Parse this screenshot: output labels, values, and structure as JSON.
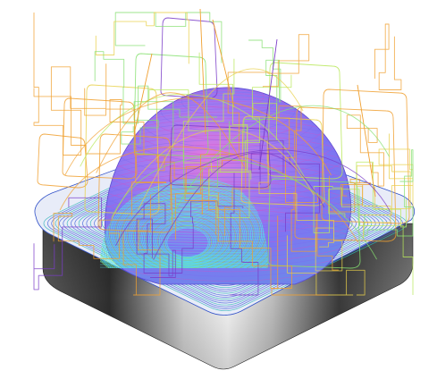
{
  "scene": {
    "background": "#ffffff",
    "subject": "toolpath-visualization",
    "colors": {
      "block_light": "#f2f2f2",
      "block_mid": "#9a9a9a",
      "block_dark": "#2a2a2a",
      "contour_blue": "#3f5fd8",
      "contour_teal": "#2fb3b8",
      "dome_violet": "#7b6cf0",
      "dome_magenta": "#d052c8",
      "finish_cyan": "#59e6e6",
      "path_orange": "#f0a030",
      "path_yellow": "#e8d04a",
      "path_green": "#86e070",
      "path_purple": "#7a3cc8",
      "path_lime": "#b8e85a"
    },
    "layers": [
      "stock-block",
      "roughing-contours",
      "dome-surface",
      "finishing-passes",
      "rapid-moves"
    ]
  }
}
